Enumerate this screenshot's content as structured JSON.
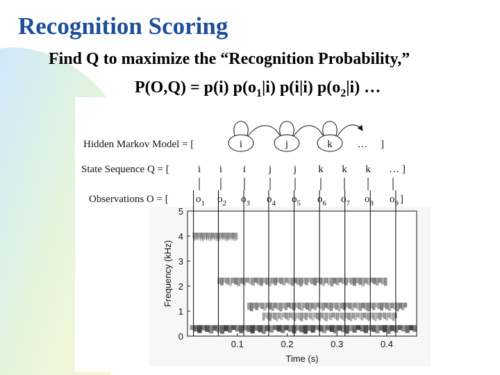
{
  "slide": {
    "title": "Recognition Scoring",
    "line1": "Find Q to maximize the “Recognition Probability,”",
    "line2_parts": [
      "P(O,Q) = p(i) p(o",
      "1",
      "|i) p(i|i) p(o",
      "2",
      "|i) …"
    ]
  },
  "diagram": {
    "hmm_label": "Hidden Markov Model = [",
    "hmm_states": [
      "i",
      "j",
      "k",
      "…"
    ],
    "hmm_close": "]",
    "state_label": "State Sequence Q = [",
    "state_sequence": [
      "i",
      "i",
      "i",
      "j",
      "j",
      "k",
      "k",
      "k",
      "… ]"
    ],
    "obs_label": "Observations  O = [",
    "observations": [
      {
        "base": "o",
        "sub": "1"
      },
      {
        "base": "o",
        "sub": "2"
      },
      {
        "base": "o",
        "sub": "3"
      },
      {
        "base": "o",
        "sub": "4"
      },
      {
        "base": "o",
        "sub": "5"
      },
      {
        "base": "o",
        "sub": "6"
      },
      {
        "base": "o",
        "sub": "7"
      },
      {
        "base": "o",
        "sub": "8"
      },
      {
        "base": "o",
        "sub": "9"
      }
    ],
    "obs_close": "]"
  },
  "chart_data": {
    "type": "heatmap",
    "title": "",
    "xlabel": "Time (s)",
    "ylabel": "Frequency (kHz)",
    "xlim": [
      0,
      0.46
    ],
    "ylim": [
      0,
      5
    ],
    "xticks": [
      0.1,
      0.2,
      0.3,
      0.4
    ],
    "xtick_labels": [
      "0.1",
      "0.2",
      "0.3",
      "0.4"
    ],
    "yticks": [
      0,
      1,
      2,
      3,
      4,
      5
    ],
    "ytick_labels": [
      "0",
      "1",
      "2",
      "3",
      "4",
      "5"
    ],
    "frame_boundaries_s": [
      0.012,
      0.062,
      0.113,
      0.163,
      0.214,
      0.265,
      0.316,
      0.367,
      0.418
    ],
    "energy_bands": [
      {
        "t_start": 0.005,
        "t_end": 0.46,
        "f_center": 0.3,
        "intensity": 0.9
      },
      {
        "t_start": 0.01,
        "t_end": 0.1,
        "f_center": 4.0,
        "intensity": 0.5
      },
      {
        "t_start": 0.06,
        "t_end": 0.4,
        "f_center": 2.2,
        "intensity": 0.6
      },
      {
        "t_start": 0.12,
        "t_end": 0.44,
        "f_center": 1.2,
        "intensity": 0.6
      },
      {
        "t_start": 0.15,
        "t_end": 0.42,
        "f_center": 0.8,
        "intensity": 0.5
      }
    ]
  },
  "colors": {
    "title": "#1d4e9a",
    "text": "#000000"
  }
}
